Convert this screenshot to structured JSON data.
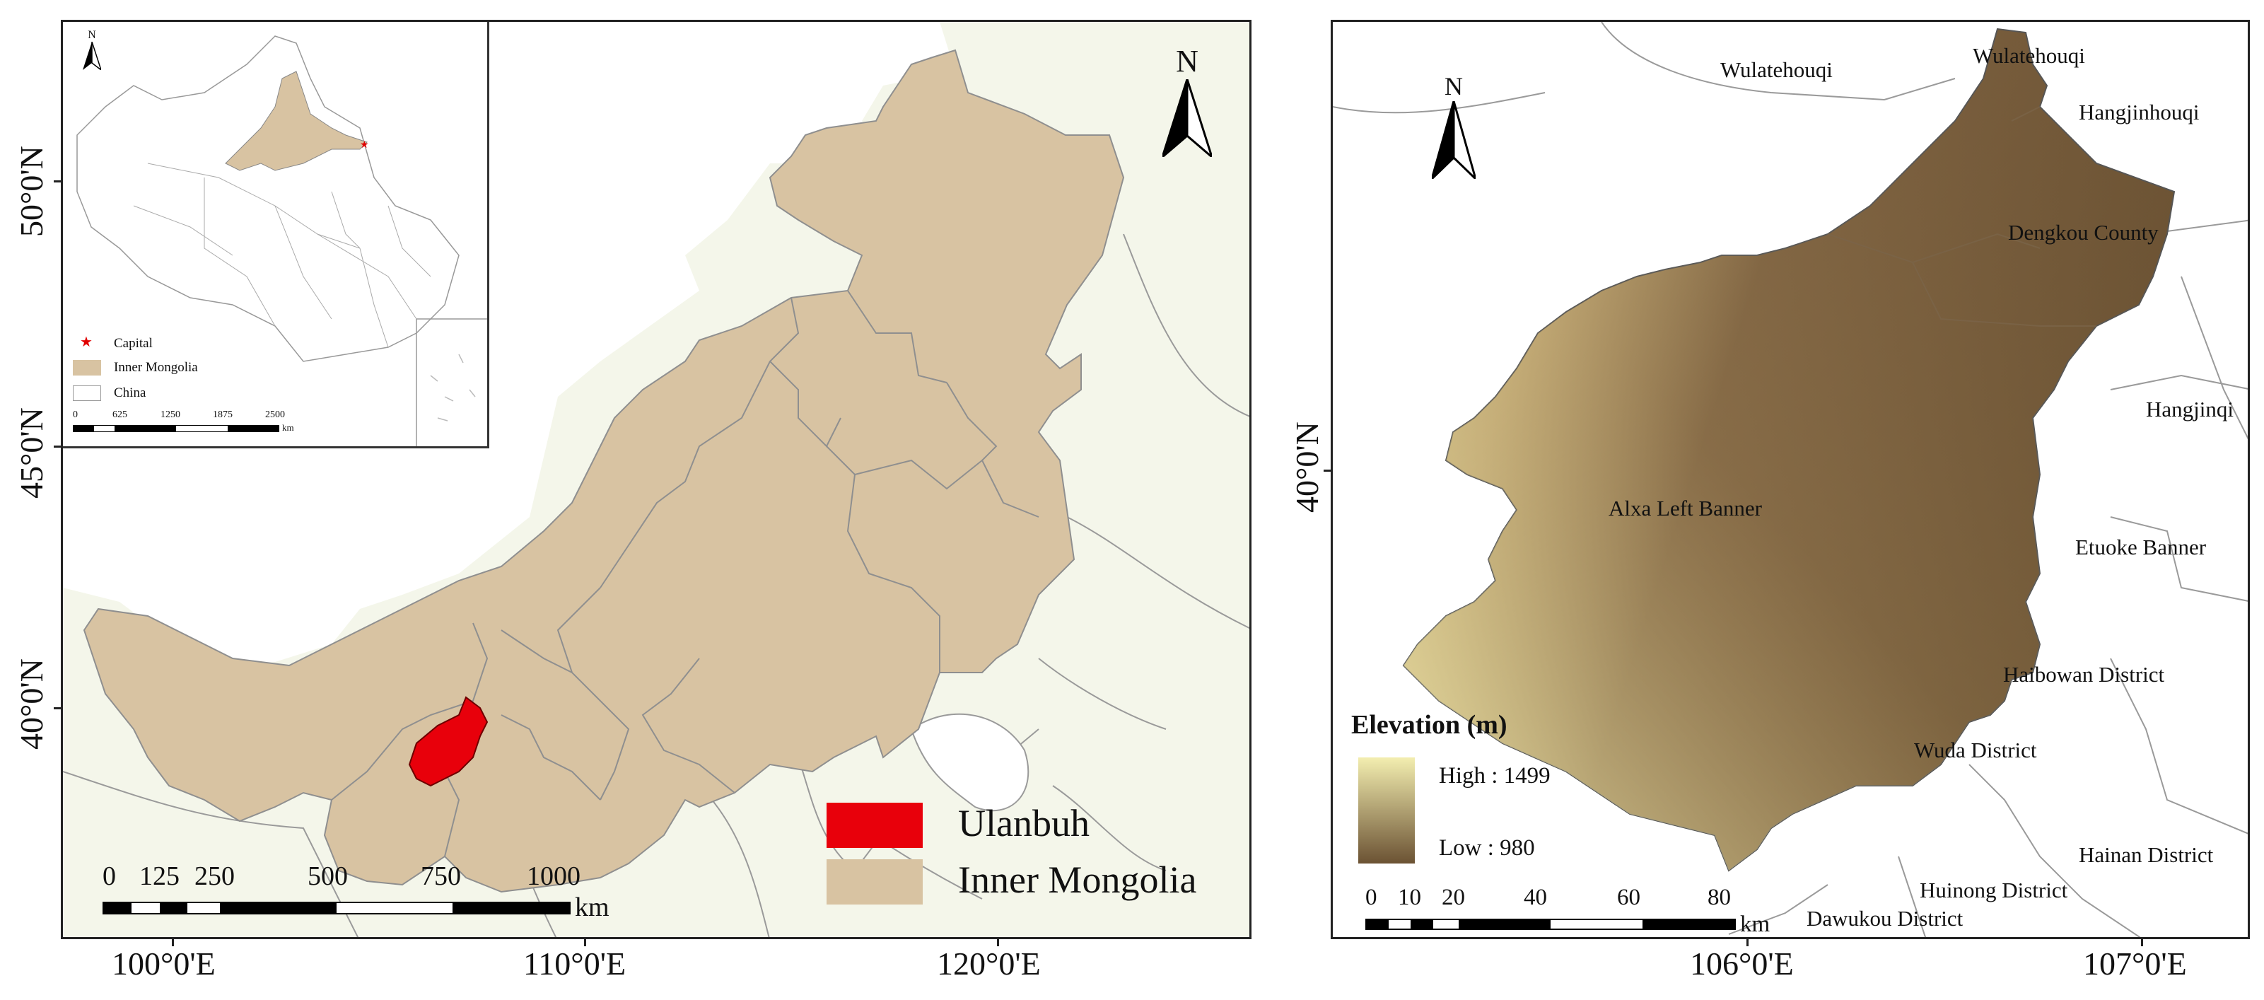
{
  "left_map": {
    "lat_labels": [
      "50°0'N",
      "45°0'N",
      "40°0'N"
    ],
    "lon_labels": [
      "100°0'E",
      "110°0'E",
      "120°0'E"
    ],
    "north_label": "N",
    "inset": {
      "north_label": "N",
      "legend": [
        {
          "label": "Capital",
          "symbol": "star",
          "color": "#e00000"
        },
        {
          "label": "Inner Mongolia",
          "symbol": "fill",
          "color": "#d8c3a2"
        },
        {
          "label": "China",
          "symbol": "fill",
          "color": "#ffffff"
        }
      ],
      "scale_values": [
        "0",
        "625",
        "1250",
        "1875",
        "2500"
      ],
      "scale_unit": "km"
    },
    "scale_values": [
      "0",
      "125",
      "250",
      "500",
      "750",
      "1000"
    ],
    "scale_unit": "km",
    "legend": [
      {
        "label": "Ulanbuh",
        "color": "#e8000b"
      },
      {
        "label": "Inner Mongolia",
        "color": "#d8c3a2"
      }
    ]
  },
  "right_map": {
    "lat_labels": [
      "40°0'N"
    ],
    "lon_labels": [
      "106°0'E",
      "107°0'E"
    ],
    "north_label": "N",
    "places": [
      "Wulatehouqi",
      "Wulatehouqi",
      "Hangjinhouqi",
      "Dengkou County",
      "Hangjinqi",
      "Alxa Left Banner",
      "Etuoke Banner",
      "Haibowan District",
      "Wuda District",
      "Hainan District",
      "Huinong District",
      "Dawukou District"
    ],
    "elevation": {
      "title": "Elevation (m)",
      "high_label": "High : 1499",
      "low_label": "Low : 980",
      "high_color": "#f3eeb0",
      "low_color": "#6b5233"
    },
    "scale_values": [
      "0",
      "10",
      "20",
      "40",
      "60",
      "80"
    ],
    "scale_unit": "km"
  }
}
